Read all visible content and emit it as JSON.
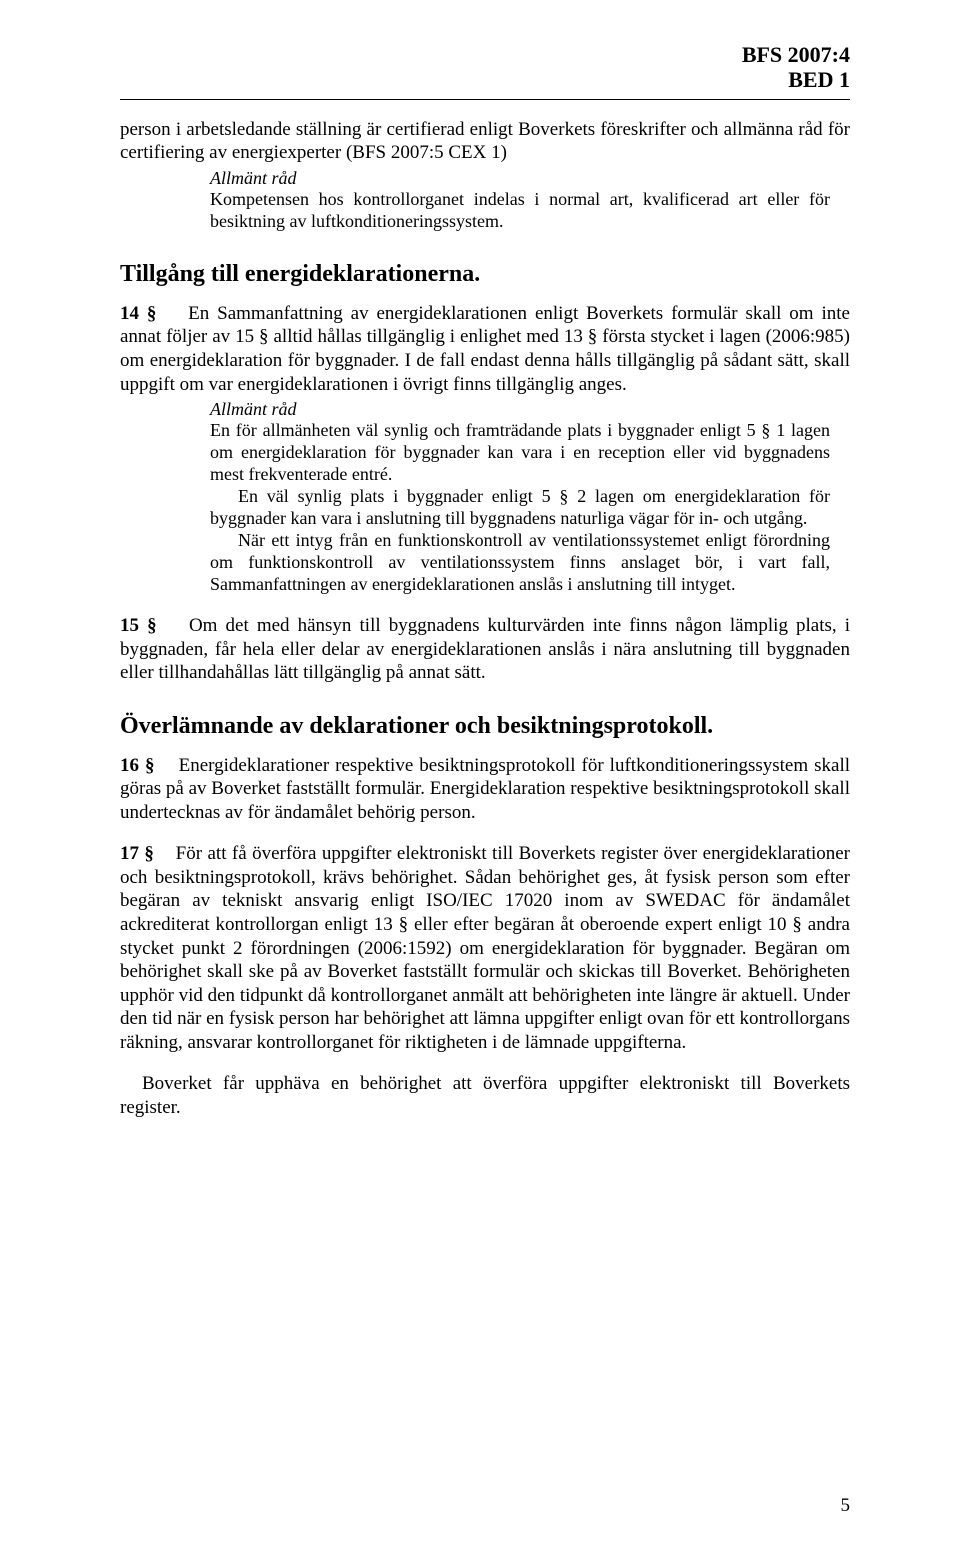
{
  "header": {
    "line1": "BFS 2007:4",
    "line2": "BED 1"
  },
  "intro": {
    "text": "person i arbetsledande ställning är certifierad enligt Boverkets föreskrifter och allmänna råd för certifiering av energiexperter (BFS 2007:5 CEX 1)",
    "advice_label": "Allmänt råd",
    "advice_text": "Kompetensen hos kontrollorganet indelas i normal art, kvalificerad art eller för besiktning av luftkonditioneringssystem."
  },
  "section_tillgang": {
    "title": "Tillgång till energideklarationerna.",
    "p14_num": "14 §",
    "p14_text": "En Sammanfattning av energideklarationen enligt Boverkets formulär skall om inte annat följer av 15 § alltid hållas tillgänglig i enlighet med 13 § första stycket i lagen (2006:985) om energideklaration för byggnader. I de fall endast denna hålls tillgänglig på sådant sätt, skall uppgift om var energideklarationen i övrigt finns tillgänglig anges.",
    "advice_label": "Allmänt råd",
    "advice1": "En för allmänheten väl synlig och framträdande plats i byggnader enligt 5 § 1 lagen om energideklaration för byggnader kan vara i en reception eller vid byggnadens mest frekventerade entré.",
    "advice2": "En väl synlig plats i byggnader enligt 5 § 2 lagen om energideklaration för byggnader kan vara i anslutning till byggnadens naturliga vägar för in- och utgång.",
    "advice3": "När ett intyg från en funktionskontroll av ventilationssystemet enligt förordning om funktionskontroll av ventilationssystem finns anslaget bör, i vart fall, Sammanfattningen av energideklarationen anslås i anslutning till intyget.",
    "p15_num": "15 §",
    "p15_text": "Om det med hänsyn till byggnadens kulturvärden inte finns någon lämplig plats, i byggnaden, får hela eller delar av energideklarationen anslås i nära anslutning till byggnaden eller tillhandahållas lätt tillgänglig på annat sätt."
  },
  "section_overlamnande": {
    "title": "Överlämnande av deklarationer och besiktningsprotokoll.",
    "p16_num": "16 §",
    "p16_text": "Energideklarationer respektive besiktningsprotokoll för luftkonditioneringssystem skall göras på av Boverket fastställt formulär. Energideklaration respektive besiktningsprotokoll skall undertecknas av för ändamålet behörig person.",
    "p17_num": "17 §",
    "p17_text": "För att få överföra uppgifter elektroniskt till Boverkets register över energideklarationer och besiktningsprotokoll, krävs behörighet. Sådan behörighet ges, åt fysisk person som efter begäran av tekniskt ansvarig enligt ISO/IEC 17020 inom av SWEDAC för ändamålet ackrediterat kontrollorgan enligt 13 § eller efter begäran åt oberoende expert enligt 10 § andra stycket punkt 2 förordningen (2006:1592) om energideklaration för byggnader. Begäran om behörighet skall ske på av Boverket fastställt formulär och skickas till Boverket. Behörigheten upphör vid den tidpunkt då kontrollorganet anmält att behörigheten inte längre är aktuell. Under den tid när en fysisk person har behörighet att lämna uppgifter enligt ovan för ett kontrollorgans räkning, ansvarar kontrollorganet för riktigheten i de lämnade uppgifterna.",
    "final_text": "Boverket får upphäva en behörighet att överföra uppgifter elektroniskt till Boverkets register."
  },
  "page_number": "5"
}
